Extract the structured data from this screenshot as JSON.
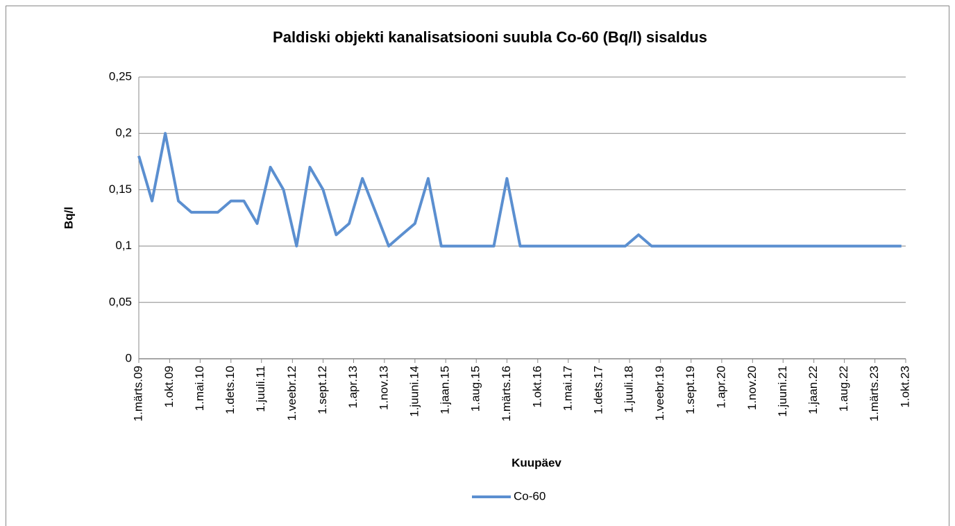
{
  "chart_data": {
    "type": "line",
    "title": "Paldiski objekti kanalisatsiooni suubla Co-60 (Bq/l) sisaldus",
    "x_label": "Kuupäev",
    "y_label": "Bq/l",
    "x": [
      "2009-03-01",
      "2009-06-01",
      "2009-09-01",
      "2009-12-01",
      "2010-03-01",
      "2010-06-01",
      "2010-09-01",
      "2010-12-01",
      "2011-03-01",
      "2011-06-01",
      "2011-09-01",
      "2011-12-01",
      "2012-03-01",
      "2012-06-01",
      "2012-09-01",
      "2012-12-01",
      "2013-03-01",
      "2013-06-01",
      "2013-09-01",
      "2013-12-01",
      "2014-03-01",
      "2014-06-01",
      "2014-09-01",
      "2014-12-01",
      "2015-03-01",
      "2015-06-01",
      "2015-09-01",
      "2015-12-01",
      "2016-03-01",
      "2016-06-01",
      "2016-09-01",
      "2016-12-01",
      "2017-03-01",
      "2017-06-01",
      "2017-09-01",
      "2017-12-01",
      "2018-03-01",
      "2018-06-01",
      "2018-09-01",
      "2018-12-01",
      "2019-03-01",
      "2019-06-01",
      "2019-09-01",
      "2019-12-01",
      "2020-03-01",
      "2020-06-01",
      "2020-09-01",
      "2020-12-01",
      "2021-03-01",
      "2021-06-01",
      "2021-09-01",
      "2021-12-01",
      "2022-03-01",
      "2022-06-01",
      "2022-09-01",
      "2022-12-01",
      "2023-03-01",
      "2023-06-01",
      "2023-09-01"
    ],
    "series": [
      {
        "name": "Co-60",
        "color": "#5b8fd0",
        "values": [
          0.18,
          0.14,
          0.2,
          0.14,
          0.13,
          0.13,
          0.13,
          0.14,
          0.14,
          0.12,
          0.17,
          0.15,
          0.1,
          0.17,
          0.15,
          0.11,
          0.12,
          0.16,
          0.13,
          0.1,
          0.11,
          0.12,
          0.16,
          0.1,
          0.1,
          0.1,
          0.1,
          0.1,
          0.16,
          0.1,
          0.1,
          0.1,
          0.1,
          0.1,
          0.1,
          0.1,
          0.1,
          0.1,
          0.11,
          0.1,
          0.1,
          0.1,
          0.1,
          0.1,
          0.1,
          0.1,
          0.1,
          0.1,
          0.1,
          0.1,
          0.1,
          0.1,
          0.1,
          0.1,
          0.1,
          0.1,
          0.1,
          0.1,
          0.1
        ]
      }
    ],
    "xlim": [
      "2009-03-01",
      "2023-10-01"
    ],
    "xticks": [
      {
        "value": "2009-03-01",
        "label": "1.märts.09"
      },
      {
        "value": "2009-10-01",
        "label": "1.okt.09"
      },
      {
        "value": "2010-05-01",
        "label": "1.mai.10"
      },
      {
        "value": "2010-12-01",
        "label": "1.dets.10"
      },
      {
        "value": "2011-07-01",
        "label": "1.juuli.11"
      },
      {
        "value": "2012-02-01",
        "label": "1.veebr.12"
      },
      {
        "value": "2012-09-01",
        "label": "1.sept.12"
      },
      {
        "value": "2013-04-01",
        "label": "1.apr.13"
      },
      {
        "value": "2013-11-01",
        "label": "1.nov.13"
      },
      {
        "value": "2014-06-01",
        "label": "1.juuni.14"
      },
      {
        "value": "2015-01-01",
        "label": "1.jaan.15"
      },
      {
        "value": "2015-08-01",
        "label": "1.aug.15"
      },
      {
        "value": "2016-03-01",
        "label": "1.märts.16"
      },
      {
        "value": "2016-10-01",
        "label": "1.okt.16"
      },
      {
        "value": "2017-05-01",
        "label": "1.mai.17"
      },
      {
        "value": "2017-12-01",
        "label": "1.dets.17"
      },
      {
        "value": "2018-07-01",
        "label": "1.juuli.18"
      },
      {
        "value": "2019-02-01",
        "label": "1.veebr.19"
      },
      {
        "value": "2019-09-01",
        "label": "1.sept.19"
      },
      {
        "value": "2020-04-01",
        "label": "1.apr.20"
      },
      {
        "value": "2020-11-01",
        "label": "1.nov.20"
      },
      {
        "value": "2021-06-01",
        "label": "1.juuni.21"
      },
      {
        "value": "2022-01-01",
        "label": "1.jaan.22"
      },
      {
        "value": "2022-08-01",
        "label": "1.aug.22"
      },
      {
        "value": "2023-03-01",
        "label": "1.märts.23"
      },
      {
        "value": "2023-10-01",
        "label": "1.okt.23"
      }
    ],
    "ylim": [
      0,
      0.25
    ],
    "yticks": [
      0,
      {
        "value": 0.05,
        "label": "0,05"
      },
      {
        "value": 0.1,
        "label": "0,1"
      },
      {
        "value": 0.15,
        "label": "0,15"
      },
      {
        "value": 0.2,
        "label": "0,2"
      },
      {
        "value": 0.25,
        "label": "0,25"
      }
    ],
    "grid": true,
    "legend": "bottom"
  }
}
